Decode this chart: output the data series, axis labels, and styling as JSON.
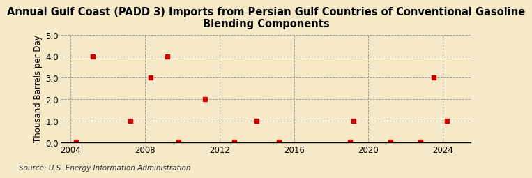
{
  "title": "Annual Gulf Coast (PADD 3) Imports from Persian Gulf Countries of Conventional Gasoline\nBlending Components",
  "ylabel": "Thousand Barrels per Day",
  "source": "Source: U.S. Energy Information Administration",
  "background_color": "#f5e9c8",
  "plot_bg_color": "#f5e9c8",
  "marker_color": "#cc0000",
  "xlim": [
    2003.5,
    2025.5
  ],
  "ylim": [
    0.0,
    5.0
  ],
  "yticks": [
    0.0,
    1.0,
    2.0,
    3.0,
    4.0,
    5.0
  ],
  "xticks": [
    2004,
    2008,
    2012,
    2016,
    2020,
    2024
  ],
  "data_x": [
    2004.3,
    2005.2,
    2007.2,
    2008.3,
    2009.2,
    2009.8,
    2011.2,
    2012.8,
    2014.0,
    2015.2,
    2019.2,
    2019.0,
    2021.2,
    2022.8,
    2023.5,
    2024.2
  ],
  "data_y": [
    0.03,
    4.0,
    1.0,
    3.0,
    4.0,
    0.03,
    2.0,
    0.03,
    1.0,
    0.03,
    1.0,
    0.03,
    0.03,
    0.03,
    3.0,
    1.0
  ],
  "vgrid_positions": [
    2004,
    2008,
    2012,
    2016,
    2020,
    2024
  ],
  "title_fontsize": 10.5,
  "axis_fontsize": 8.5,
  "tick_fontsize": 8.5,
  "source_fontsize": 7.5
}
